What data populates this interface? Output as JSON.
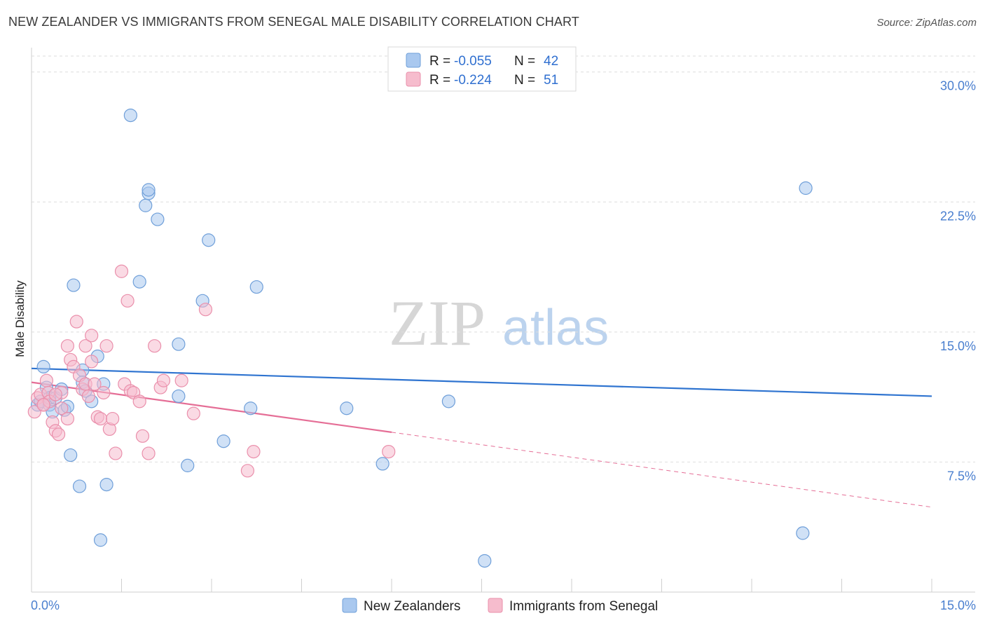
{
  "title": "NEW ZEALANDER VS IMMIGRANTS FROM SENEGAL MALE DISABILITY CORRELATION CHART",
  "source": "Source: ZipAtlas.com",
  "watermark": {
    "zip": "ZIP",
    "atlas": "atlas"
  },
  "colors": {
    "blue_fill": "#a9c8ef",
    "blue_stroke": "#6f9fd9",
    "blue_line": "#2f74d0",
    "pink_fill": "#f6bccd",
    "pink_stroke": "#ea8fab",
    "pink_line": "#e56e96",
    "grid": "#dedede",
    "axis_text": "#4a7fcf"
  },
  "legend": {
    "rows": [
      {
        "r_label": "R =",
        "r_value": "-0.055",
        "n_label": "N =",
        "n_value": "42",
        "series": "blue"
      },
      {
        "r_label": "R =",
        "r_value": "-0.224",
        "n_label": "N =",
        "n_value": "51",
        "series": "pink"
      }
    ]
  },
  "chart_data": {
    "type": "scatter",
    "title": "NEW ZEALANDER VS IMMIGRANTS FROM SENEGAL MALE DISABILITY CORRELATION CHART",
    "xlabel": "",
    "ylabel": "Male Disability",
    "xlim": [
      0,
      15
    ],
    "ylim": [
      0,
      31
    ],
    "x_tick_labels": [
      "0.0%",
      "15.0%"
    ],
    "y_ticks": [
      7.5,
      15.0,
      22.5,
      30.0
    ],
    "y_tick_labels": [
      "7.5%",
      "15.0%",
      "22.5%",
      "30.0%"
    ],
    "grid": true,
    "series": [
      {
        "name": "New Zealanders",
        "color": "blue",
        "trend": {
          "x": [
            0.0,
            15.0
          ],
          "y": [
            12.9,
            11.3
          ],
          "solid_to": 15.0
        },
        "points": [
          [
            0.1,
            10.8
          ],
          [
            0.15,
            11.0
          ],
          [
            0.2,
            13.0
          ],
          [
            0.25,
            11.8
          ],
          [
            0.3,
            10.8
          ],
          [
            0.3,
            11.2
          ],
          [
            0.35,
            10.4
          ],
          [
            0.4,
            11.2
          ],
          [
            0.5,
            11.7
          ],
          [
            0.55,
            10.5
          ],
          [
            0.6,
            10.7
          ],
          [
            0.65,
            7.9
          ],
          [
            0.7,
            17.7
          ],
          [
            0.8,
            6.1
          ],
          [
            0.85,
            12.8
          ],
          [
            0.85,
            12.1
          ],
          [
            0.9,
            11.6
          ],
          [
            1.0,
            11.0
          ],
          [
            1.1,
            13.6
          ],
          [
            1.15,
            3.0
          ],
          [
            1.2,
            12.0
          ],
          [
            1.25,
            6.2
          ],
          [
            1.65,
            27.5
          ],
          [
            1.8,
            17.9
          ],
          [
            1.9,
            22.3
          ],
          [
            1.95,
            23.0
          ],
          [
            1.95,
            23.2
          ],
          [
            2.1,
            21.5
          ],
          [
            2.45,
            14.3
          ],
          [
            2.45,
            11.3
          ],
          [
            2.6,
            7.3
          ],
          [
            2.85,
            16.8
          ],
          [
            2.95,
            20.3
          ],
          [
            3.2,
            8.7
          ],
          [
            3.65,
            10.6
          ],
          [
            3.75,
            17.6
          ],
          [
            5.25,
            10.6
          ],
          [
            5.85,
            7.4
          ],
          [
            6.95,
            11.0
          ],
          [
            7.55,
            1.8
          ],
          [
            12.85,
            3.4
          ],
          [
            12.9,
            23.3
          ]
        ]
      },
      {
        "name": "Immigrants from Senegal",
        "color": "pink",
        "trend": {
          "x": [
            0.0,
            15.0
          ],
          "y": [
            12.1,
            4.9
          ],
          "solid_to": 6.0
        },
        "points": [
          [
            0.05,
            10.4
          ],
          [
            0.1,
            11.2
          ],
          [
            0.15,
            11.4
          ],
          [
            0.2,
            10.8
          ],
          [
            0.25,
            12.2
          ],
          [
            0.28,
            11.5
          ],
          [
            0.3,
            11.0
          ],
          [
            0.35,
            9.8
          ],
          [
            0.4,
            9.3
          ],
          [
            0.45,
            9.1
          ],
          [
            0.5,
            10.6
          ],
          [
            0.5,
            11.5
          ],
          [
            0.6,
            14.2
          ],
          [
            0.65,
            13.4
          ],
          [
            0.7,
            13.0
          ],
          [
            0.75,
            15.6
          ],
          [
            0.8,
            12.5
          ],
          [
            0.85,
            11.7
          ],
          [
            0.9,
            14.2
          ],
          [
            0.9,
            12.0
          ],
          [
            0.95,
            11.3
          ],
          [
            1.0,
            13.3
          ],
          [
            1.0,
            14.8
          ],
          [
            1.05,
            12.0
          ],
          [
            1.1,
            10.1
          ],
          [
            1.15,
            10.0
          ],
          [
            1.2,
            11.5
          ],
          [
            1.25,
            14.2
          ],
          [
            1.3,
            9.4
          ],
          [
            1.35,
            10.0
          ],
          [
            1.4,
            8.0
          ],
          [
            1.5,
            18.5
          ],
          [
            1.55,
            12.0
          ],
          [
            1.6,
            16.8
          ],
          [
            1.65,
            11.6
          ],
          [
            1.7,
            11.5
          ],
          [
            1.8,
            11.0
          ],
          [
            1.85,
            9.0
          ],
          [
            1.95,
            8.0
          ],
          [
            2.05,
            14.2
          ],
          [
            2.15,
            11.8
          ],
          [
            2.2,
            12.2
          ],
          [
            2.5,
            12.2
          ],
          [
            2.7,
            10.3
          ],
          [
            2.9,
            16.3
          ],
          [
            3.6,
            7.0
          ],
          [
            3.7,
            8.1
          ],
          [
            5.95,
            8.1
          ],
          [
            0.2,
            10.8
          ],
          [
            0.4,
            11.4
          ],
          [
            0.6,
            10.0
          ]
        ]
      }
    ]
  },
  "bottom_legend": [
    {
      "label": "New Zealanders",
      "series": "blue"
    },
    {
      "label": "Immigrants from Senegal",
      "series": "pink"
    }
  ]
}
